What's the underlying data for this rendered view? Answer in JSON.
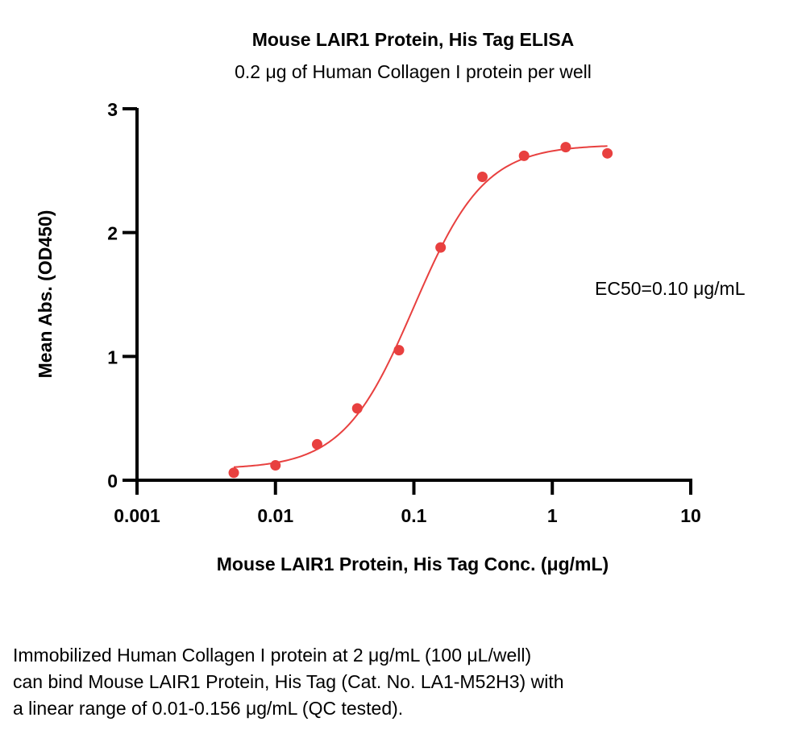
{
  "chart_data": {
    "type": "scatter",
    "title": "Mouse LAIR1 Protein, His Tag ELISA",
    "subtitle": "0.2 μg of Human Collagen I protein per well",
    "xlabel": "Mouse LAIR1 Protein, His Tag Conc. (μg/mL)",
    "ylabel": "Mean Abs. (OD450)",
    "xscale": "log",
    "xlim": [
      0.001,
      10
    ],
    "ylim": [
      0,
      3
    ],
    "x_ticks": [
      0.001,
      0.01,
      0.1,
      1,
      10
    ],
    "x_tick_labels": [
      "0.001",
      "0.01",
      "0.1",
      "1",
      "10"
    ],
    "y_ticks": [
      0,
      1,
      2,
      3
    ],
    "y_tick_labels": [
      "0",
      "1",
      "2",
      "3"
    ],
    "grid": false,
    "color": "#e8403f",
    "annotation": "EC50=0.10 μg/mL",
    "series": [
      {
        "x": [
          0.005,
          0.01,
          0.02,
          0.039,
          0.078,
          0.156,
          0.3125,
          0.625,
          1.25,
          2.5
        ],
        "y": [
          0.06,
          0.12,
          0.29,
          0.58,
          1.05,
          1.88,
          2.45,
          2.62,
          2.69,
          2.64
        ]
      }
    ],
    "fit_curve": {
      "model": "4PL",
      "bottom": 0.09,
      "top": 2.71,
      "ec50": 0.1,
      "hill": 1.7
    }
  },
  "caption": [
    "Immobilized Human Collagen I protein at 2 μg/mL (100 μL/well)",
    "can bind Mouse LAIR1 Protein, His Tag (Cat. No. LA1-M52H3) with",
    "a linear range of 0.01-0.156 μg/mL (QC tested)."
  ]
}
